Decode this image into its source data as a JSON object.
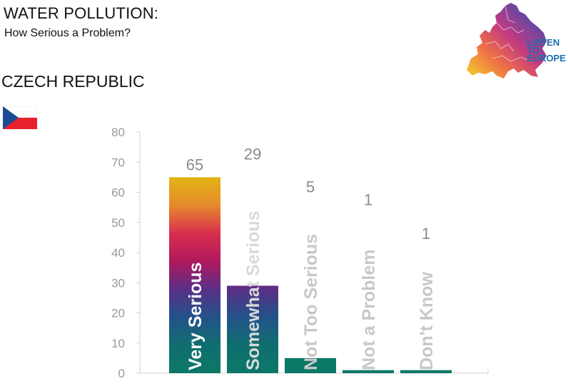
{
  "header": {
    "title": "WATER POLLUTION:",
    "subtitle": "How Serious a Problem?",
    "country": "CZECH REPUBLIC"
  },
  "logo": {
    "lines": [
      "LISTEN",
      "TO",
      "EUROPE"
    ],
    "text_color": "#1a6fb0"
  },
  "flag": {
    "country": "Czech Republic"
  },
  "colors": {
    "bar_top": "#e1b512",
    "bar_gradient": [
      "#e1b512",
      "#e58a2c",
      "#d92f4f",
      "#b0195d",
      "#5a2f86",
      "#23528a",
      "#0f6e6f",
      "#0c7868"
    ],
    "bar_base": "#0c7868",
    "axis": "#cfcfcf",
    "tick_text": "#9a9a9a",
    "value_text": "#8a8a8a",
    "category_text_on_bar": "#ffffff",
    "category_text_off_bar": "#c8c8c8"
  },
  "chart_data": {
    "type": "bar",
    "title": "",
    "xlabel": "",
    "ylabel": "",
    "categories": [
      "Very Serious",
      "Somewhat Serious",
      "Not Too Serious",
      "Not a Problem",
      "Don't Know"
    ],
    "values": [
      65,
      29,
      5,
      1,
      1
    ],
    "ylim": [
      0,
      80
    ],
    "yticks": [
      0,
      10,
      20,
      30,
      40,
      50,
      60,
      70,
      80
    ],
    "grid": false,
    "legend": "none"
  }
}
